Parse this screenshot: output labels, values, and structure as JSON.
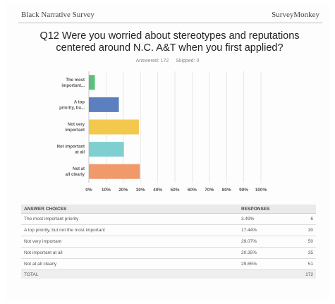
{
  "header": {
    "left": "Black Narrative Survey",
    "right": "SurveyMonkey"
  },
  "question": {
    "title": "Q12 Were you worried about stereotypes and reputations centered around N.C. A&T when you first applied?"
  },
  "meta": {
    "answered_label": "Answered: 172",
    "skipped_label": "Skipped: 0"
  },
  "chart_data": {
    "type": "bar",
    "orientation": "horizontal",
    "categories": [
      "The most important...",
      "A top priority, bu...",
      "Not very important",
      "Not important at all",
      "Not at all clearly"
    ],
    "values": [
      3.49,
      17.44,
      29.07,
      20.35,
      29.65
    ],
    "colors": [
      "#5cbf7a",
      "#5b7fbf",
      "#f2c94c",
      "#7fcfd0",
      "#f0996a"
    ],
    "xticks": [
      "0%",
      "10%",
      "20%",
      "30%",
      "40%",
      "50%",
      "60%",
      "70%",
      "80%",
      "90%",
      "100%"
    ],
    "xlim": [
      0,
      100
    ],
    "grid": true
  },
  "table": {
    "headers": {
      "choice": "ANSWER CHOICES",
      "responses": "RESPONSES"
    },
    "rows": [
      {
        "choice": "The most important priority",
        "pct": "3.49%",
        "count": "6"
      },
      {
        "choice": "A top priority, but not the most important",
        "pct": "17.44%",
        "count": "30"
      },
      {
        "choice": "Not very important",
        "pct": "29.07%",
        "count": "50"
      },
      {
        "choice": "Not important at all",
        "pct": "20.35%",
        "count": "35"
      },
      {
        "choice": "Not at all clearly",
        "pct": "29.65%",
        "count": "51"
      }
    ],
    "total": {
      "label": "TOTAL",
      "count": "172"
    }
  }
}
